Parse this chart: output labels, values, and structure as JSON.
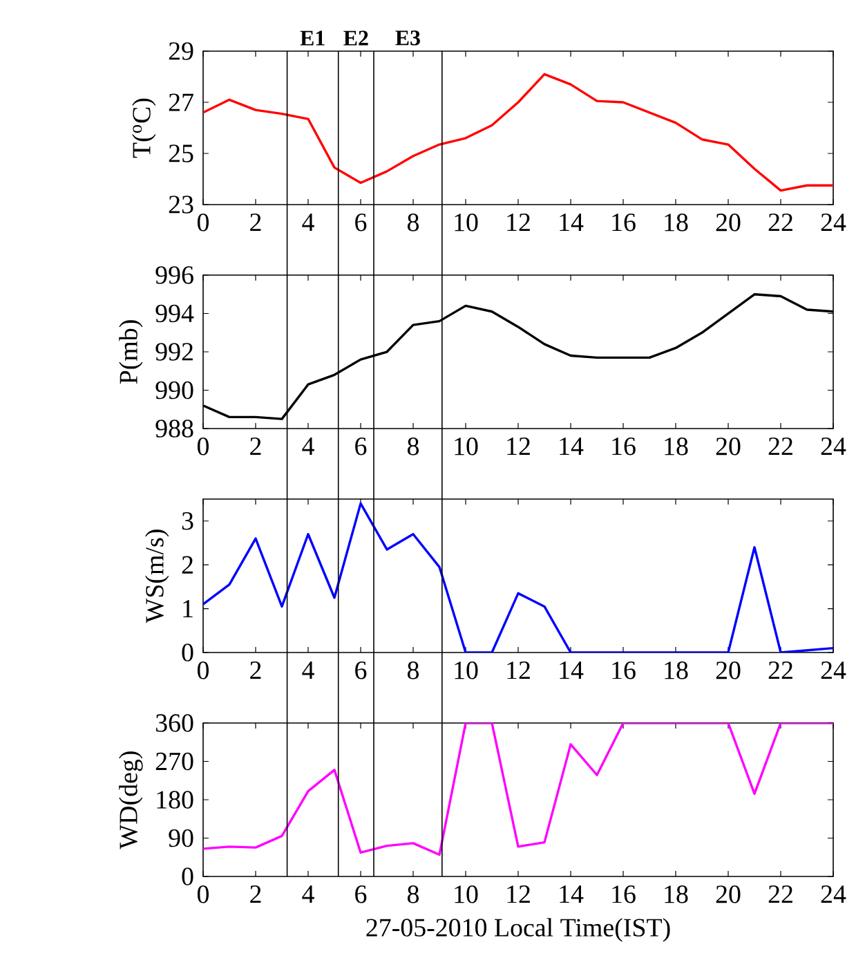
{
  "chart_data": [
    {
      "type": "line",
      "ylabel": "T($^{o}$C)",
      "x": [
        0,
        1,
        2,
        3,
        4,
        5,
        6,
        7,
        8,
        9,
        10,
        11,
        12,
        13,
        14,
        15,
        16,
        17,
        18,
        19,
        20,
        21,
        22,
        23,
        24
      ],
      "series": [
        {
          "color": "#ff0000",
          "values": [
            26.6,
            27.1,
            26.7,
            26.55,
            26.35,
            24.45,
            23.85,
            24.3,
            24.9,
            25.35,
            25.6,
            26.1,
            27.0,
            28.1,
            27.7,
            27.05,
            27.0,
            26.6,
            26.2,
            25.55,
            25.35,
            24.4,
            23.55,
            23.75,
            23.75
          ]
        }
      ],
      "xlim": [
        0,
        24
      ],
      "ylim": [
        23,
        29
      ],
      "xticks": [
        0,
        2,
        4,
        6,
        8,
        10,
        12,
        14,
        16,
        18,
        20,
        22,
        24
      ],
      "yticks": [
        23,
        25,
        27,
        29
      ],
      "annotations": [
        "E1",
        "E2",
        "E3"
      ],
      "ref_lines": [
        {
          "axis": "x",
          "value": 3.2,
          "color": "#000000"
        },
        {
          "axis": "x",
          "value": 5.15,
          "color": "#000000"
        },
        {
          "axis": "x",
          "value": 6.5,
          "color": "#000000"
        },
        {
          "axis": "x",
          "value": 9.1,
          "color": "#000000"
        }
      ]
    },
    {
      "type": "line",
      "ylabel": "P(mb)",
      "x": [
        0,
        1,
        2,
        3,
        4,
        5,
        6,
        7,
        8,
        9,
        10,
        11,
        12,
        13,
        14,
        15,
        16,
        17,
        18,
        19,
        20,
        21,
        22,
        23,
        24
      ],
      "series": [
        {
          "color": "#000000",
          "values": [
            989.2,
            988.6,
            988.6,
            988.5,
            990.3,
            990.8,
            991.6,
            992.0,
            993.4,
            993.6,
            994.4,
            994.1,
            993.3,
            992.4,
            991.8,
            991.7,
            991.7,
            991.7,
            992.2,
            993.0,
            994.0,
            995.0,
            994.9,
            994.2,
            994.1
          ]
        }
      ],
      "xlim": [
        0,
        24
      ],
      "ylim": [
        988,
        996
      ],
      "xticks": [
        0,
        2,
        4,
        6,
        8,
        10,
        12,
        14,
        16,
        18,
        20,
        22,
        24
      ],
      "yticks": [
        988,
        990,
        992,
        994,
        996
      ],
      "ref_lines": [
        {
          "axis": "x",
          "value": 3.2,
          "color": "#000000"
        },
        {
          "axis": "x",
          "value": 5.15,
          "color": "#000000"
        },
        {
          "axis": "x",
          "value": 6.5,
          "color": "#000000"
        },
        {
          "axis": "x",
          "value": 9.1,
          "color": "#000000"
        }
      ]
    },
    {
      "type": "line",
      "ylabel": "WS(m/s)",
      "x": [
        0,
        1,
        2,
        3,
        4,
        5,
        6,
        7,
        8,
        9,
        10,
        11,
        12,
        13,
        14,
        15,
        16,
        17,
        18,
        19,
        20,
        21,
        22,
        23,
        24
      ],
      "series": [
        {
          "color": "#0000ff",
          "values": [
            1.1,
            1.55,
            2.6,
            1.05,
            2.7,
            1.25,
            3.4,
            2.35,
            2.7,
            1.95,
            0,
            0,
            1.35,
            1.05,
            0,
            0,
            0,
            0,
            0,
            0,
            0,
            2.4,
            0,
            0.05,
            0.1
          ]
        }
      ],
      "xlim": [
        0,
        24
      ],
      "ylim": [
        0,
        3.5
      ],
      "xticks": [
        0,
        2,
        4,
        6,
        8,
        10,
        12,
        14,
        16,
        18,
        20,
        22,
        24
      ],
      "yticks": [
        0,
        1,
        2,
        3
      ],
      "ref_lines": [
        {
          "axis": "x",
          "value": 3.2,
          "color": "#000000"
        },
        {
          "axis": "x",
          "value": 5.15,
          "color": "#000000"
        },
        {
          "axis": "x",
          "value": 6.5,
          "color": "#000000"
        },
        {
          "axis": "x",
          "value": 9.1,
          "color": "#000000"
        }
      ]
    },
    {
      "type": "line",
      "ylabel": "WD(deg)",
      "xlabel": "27-05-2010 Local Time(IST)",
      "x": [
        0,
        1,
        2,
        3,
        4,
        5,
        6,
        7,
        8,
        9,
        10,
        11,
        12,
        13,
        14,
        15,
        16,
        17,
        18,
        19,
        20,
        21,
        22,
        23,
        24
      ],
      "series": [
        {
          "color": "#ff00ff",
          "values": [
            65,
            70,
            68,
            95,
            200,
            250,
            56,
            72,
            78,
            51,
            360,
            360,
            70,
            80,
            310,
            238,
            360,
            360,
            360,
            360,
            360,
            194,
            360,
            360,
            360
          ]
        }
      ],
      "xlim": [
        0,
        24
      ],
      "ylim": [
        0,
        360
      ],
      "xticks": [
        0,
        2,
        4,
        6,
        8,
        10,
        12,
        14,
        16,
        18,
        20,
        22,
        24
      ],
      "yticks": [
        0,
        90,
        180,
        270,
        360
      ],
      "ref_lines": [
        {
          "axis": "x",
          "value": 3.2,
          "color": "#000000"
        },
        {
          "axis": "x",
          "value": 5.15,
          "color": "#000000"
        },
        {
          "axis": "x",
          "value": 6.5,
          "color": "#000000"
        },
        {
          "axis": "x",
          "value": 9.1,
          "color": "#000000"
        }
      ]
    }
  ]
}
